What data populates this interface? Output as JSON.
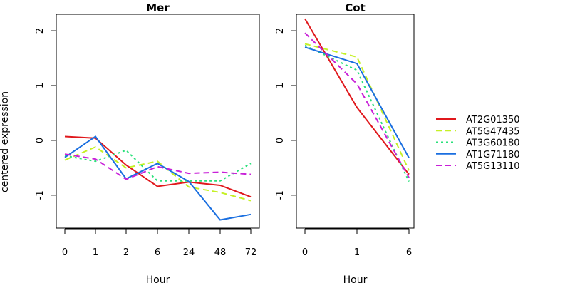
{
  "figure": {
    "ylabel": "centered expression"
  },
  "chart_data": [
    {
      "type": "line",
      "title": "Mer",
      "xlabel": "Hour",
      "categories": [
        "0",
        "1",
        "2",
        "6",
        "24",
        "48",
        "72"
      ],
      "ylim": [
        -1.6,
        2.3
      ],
      "yticks": [
        -1,
        0,
        1,
        2
      ],
      "series": [
        {
          "name": "AT2G01350",
          "values": [
            0.07,
            0.04,
            -0.45,
            -0.84,
            -0.76,
            -0.82,
            -1.03
          ]
        },
        {
          "name": "AT5G47435",
          "values": [
            -0.36,
            -0.12,
            -0.5,
            -0.38,
            -0.85,
            -0.95,
            -1.1
          ]
        },
        {
          "name": "AT3G60180",
          "values": [
            -0.28,
            -0.38,
            -0.18,
            -0.74,
            -0.74,
            -0.74,
            -0.42
          ]
        },
        {
          "name": "AT1G71180",
          "values": [
            -0.31,
            0.07,
            -0.7,
            -0.42,
            -0.75,
            -1.45,
            -1.35
          ]
        },
        {
          "name": "AT5G13110",
          "values": [
            -0.25,
            -0.34,
            -0.71,
            -0.48,
            -0.6,
            -0.58,
            -0.62
          ]
        }
      ]
    },
    {
      "type": "line",
      "title": "Cot",
      "xlabel": "Hour",
      "categories": [
        "0",
        "1",
        "6"
      ],
      "ylim": [
        -1.6,
        2.3
      ],
      "yticks": [
        -1,
        0,
        1,
        2
      ],
      "series": [
        {
          "name": "AT2G01350",
          "values": [
            2.22,
            0.6,
            -0.62
          ]
        },
        {
          "name": "AT5G47435",
          "values": [
            1.76,
            1.52,
            -0.55
          ]
        },
        {
          "name": "AT3G60180",
          "values": [
            1.73,
            1.28,
            -0.75
          ]
        },
        {
          "name": "AT1G71180",
          "values": [
            1.7,
            1.4,
            -0.32
          ]
        },
        {
          "name": "AT5G13110",
          "values": [
            1.96,
            1.03,
            -0.68
          ]
        }
      ]
    }
  ],
  "legend": {
    "placement": "right",
    "entries": [
      {
        "name": "AT2G01350",
        "color": "#e0181c",
        "dash": "solid"
      },
      {
        "name": "AT5G47435",
        "color": "#c5f026",
        "dash": "dashed"
      },
      {
        "name": "AT3G60180",
        "color": "#29e07a",
        "dash": "dotted"
      },
      {
        "name": "AT1G71180",
        "color": "#1a6fe0",
        "dash": "solid"
      },
      {
        "name": "AT5G13110",
        "color": "#c820d8",
        "dash": "dashed"
      }
    ]
  }
}
